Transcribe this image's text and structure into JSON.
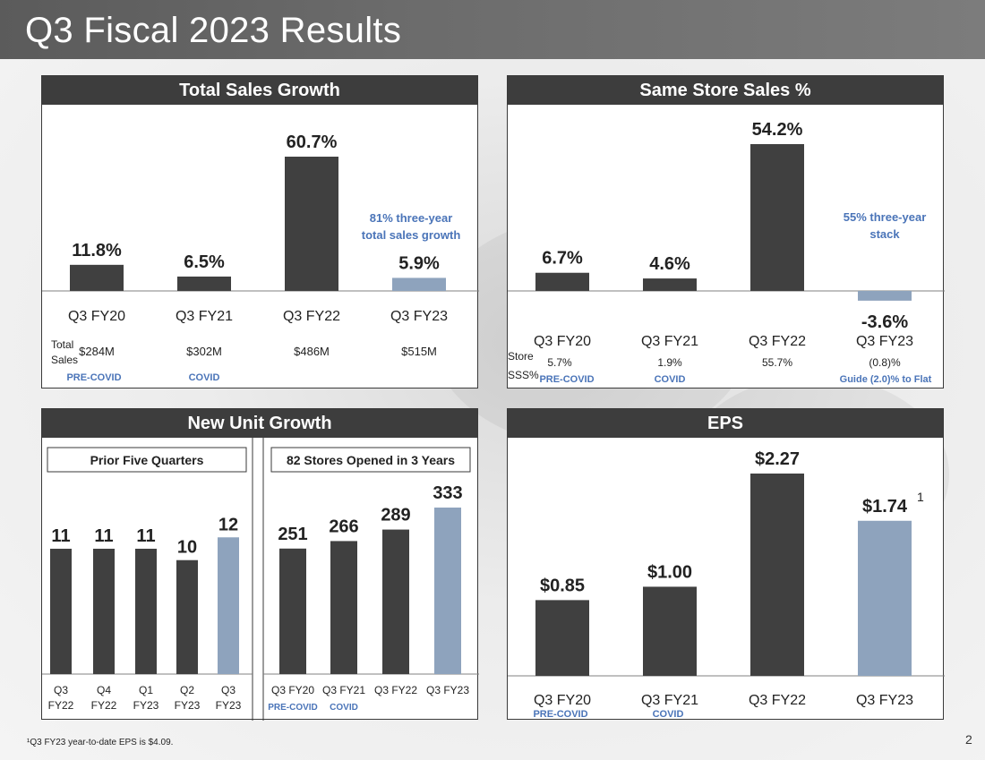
{
  "page": {
    "title": "Q3 Fiscal 2023 Results",
    "footnote": "¹Q3 FY23 year-to-date EPS is $4.09.",
    "page_number": "2"
  },
  "colors": {
    "dark_bar": "#404040",
    "highlight_bar": "#8ea3bd",
    "accent_text": "#4a74b8",
    "axis": "#808080"
  },
  "chart_data": [
    {
      "id": "total-sales",
      "type": "bar",
      "title": "Total Sales Growth",
      "categories": [
        "Q3 FY20",
        "Q3 FY21",
        "Q3 FY22",
        "Q3 FY23"
      ],
      "values": [
        11.8,
        6.5,
        60.7,
        5.9
      ],
      "value_labels": [
        "11.8%",
        "6.5%",
        "60.7%",
        "5.9%"
      ],
      "highlight_index": 3,
      "ylim": [
        0,
        70
      ],
      "annotation": [
        "81% three-year",
        "total sales growth"
      ],
      "row_label": [
        "Total",
        "Sales"
      ],
      "row_values": [
        "$284M",
        "$302M",
        "$486M",
        "$515M"
      ],
      "period_tags": [
        "PRE-COVID",
        "COVID",
        "",
        ""
      ]
    },
    {
      "id": "same-store-sales",
      "type": "bar",
      "title": "Same Store Sales %",
      "categories": [
        "Q3 FY20",
        "Q3 FY21",
        "Q3 FY22",
        "Q3 FY23"
      ],
      "values": [
        6.7,
        4.6,
        54.2,
        -3.6
      ],
      "value_labels": [
        "6.7%",
        "4.6%",
        "54.2%",
        "-3.6%"
      ],
      "highlight_index": 3,
      "ylim": [
        -5,
        60
      ],
      "annotation": [
        "55% three-year",
        "stack"
      ],
      "row_label": [
        "Store",
        "SSS%"
      ],
      "row_values": [
        "5.7%",
        "1.9%",
        "55.7%",
        "(0.8)%"
      ],
      "period_tags": [
        "PRE-COVID",
        "COVID",
        "",
        "Guide (2.0)% to Flat"
      ]
    },
    {
      "id": "new-unit-growth",
      "type": "bar",
      "title": "New Unit Growth",
      "subcharts": [
        {
          "id": "prior-five-quarters",
          "subtitle": "Prior Five Quarters",
          "categories": [
            [
              "Q3",
              "FY22"
            ],
            [
              "Q4",
              "FY22"
            ],
            [
              "Q1",
              "FY23"
            ],
            [
              "Q2",
              "FY23"
            ],
            [
              "Q3",
              "FY23"
            ]
          ],
          "values": [
            11,
            11,
            11,
            10,
            12
          ],
          "value_labels": [
            "11",
            "11",
            "11",
            "10",
            "12"
          ],
          "highlight_index": 4,
          "ylim": [
            0,
            18
          ]
        },
        {
          "id": "stores-opened",
          "subtitle": "82 Stores Opened in 3 Years",
          "categories": [
            "Q3 FY20",
            "Q3 FY21",
            "Q3 FY22",
            "Q3 FY23"
          ],
          "values": [
            251,
            266,
            289,
            333
          ],
          "value_labels": [
            "251",
            "266",
            "289",
            "333"
          ],
          "highlight_index": 3,
          "ylim": [
            0,
            410
          ],
          "period_tags": [
            "PRE-COVID",
            "COVID",
            "",
            ""
          ]
        }
      ]
    },
    {
      "id": "eps",
      "type": "bar",
      "title": "EPS",
      "categories": [
        "Q3 FY20",
        "Q3 FY21",
        "Q3 FY22",
        "Q3 FY23"
      ],
      "values": [
        0.85,
        1.0,
        2.27,
        1.74
      ],
      "value_labels": [
        "$0.85",
        "$1.00",
        "$2.27",
        "$1.74"
      ],
      "highlight_index": 3,
      "ylim": [
        0,
        2.6
      ],
      "superscript": "1",
      "period_tags": [
        "PRE-COVID",
        "COVID",
        "",
        ""
      ]
    }
  ]
}
